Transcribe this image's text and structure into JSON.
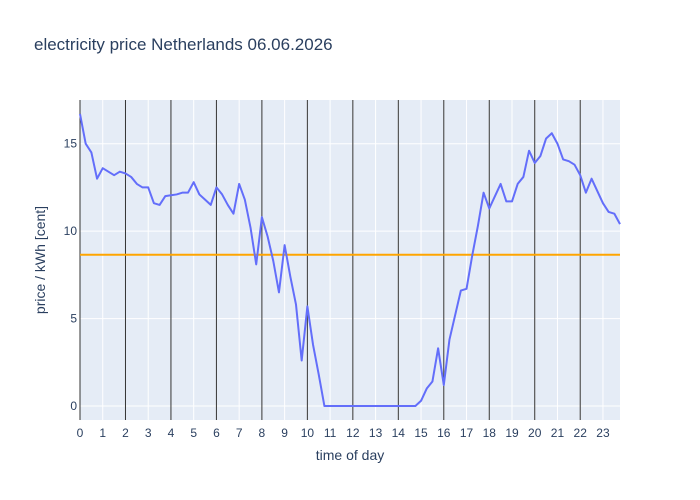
{
  "chart_data": {
    "type": "line",
    "title": "electricity price Netherlands 06.06.2026",
    "xlabel": "time of day",
    "ylabel": "price / kWh [cent]",
    "xlim": [
      0,
      23.75
    ],
    "ylim": [
      -0.8,
      17.5
    ],
    "x_ticks": [
      0,
      1,
      2,
      3,
      4,
      5,
      6,
      7,
      8,
      9,
      10,
      11,
      12,
      13,
      14,
      15,
      16,
      17,
      18,
      19,
      20,
      21,
      22,
      23
    ],
    "y_ticks": [
      0,
      5,
      10,
      15
    ],
    "grid": true,
    "colors": {
      "plot_bg": "#e5ecf6",
      "grid": "#ffffff",
      "price_line": "#636efa",
      "average_line": "#ffa500",
      "vertical_lines": "#333333",
      "text": "#2a3f5f"
    },
    "vertical_lines_x": [
      2,
      4,
      6,
      8,
      10,
      12,
      14,
      16,
      18,
      20,
      22
    ],
    "average_value": 8.65,
    "series": [
      {
        "values": [
          [
            0.0,
            16.7
          ],
          [
            0.25,
            15.0
          ],
          [
            0.5,
            14.5
          ],
          [
            0.75,
            13.0
          ],
          [
            1.0,
            13.6
          ],
          [
            1.25,
            13.4
          ],
          [
            1.5,
            13.2
          ],
          [
            1.75,
            13.4
          ],
          [
            2.0,
            13.3
          ],
          [
            2.25,
            13.1
          ],
          [
            2.5,
            12.7
          ],
          [
            2.75,
            12.5
          ],
          [
            3.0,
            12.5
          ],
          [
            3.25,
            11.6
          ],
          [
            3.5,
            11.5
          ],
          [
            3.75,
            12.0
          ],
          [
            4.0,
            12.05
          ],
          [
            4.25,
            12.1
          ],
          [
            4.5,
            12.2
          ],
          [
            4.75,
            12.2
          ],
          [
            5.0,
            12.8
          ],
          [
            5.25,
            12.1
          ],
          [
            5.5,
            11.8
          ],
          [
            5.75,
            11.5
          ],
          [
            6.0,
            12.5
          ],
          [
            6.25,
            12.1
          ],
          [
            6.5,
            11.5
          ],
          [
            6.75,
            11.0
          ],
          [
            7.0,
            12.7
          ],
          [
            7.25,
            11.8
          ],
          [
            7.5,
            10.2
          ],
          [
            7.75,
            8.1
          ],
          [
            8.0,
            10.8
          ],
          [
            8.25,
            9.7
          ],
          [
            8.5,
            8.3
          ],
          [
            8.75,
            6.5
          ],
          [
            9.0,
            9.2
          ],
          [
            9.25,
            7.4
          ],
          [
            9.5,
            5.8
          ],
          [
            9.75,
            2.6
          ],
          [
            10.0,
            5.7
          ],
          [
            10.25,
            3.5
          ],
          [
            10.5,
            1.8
          ],
          [
            10.75,
            0.0
          ],
          [
            11.0,
            0.0
          ],
          [
            11.5,
            0.0
          ],
          [
            12.0,
            0.0
          ],
          [
            12.5,
            0.0
          ],
          [
            13.0,
            0.0
          ],
          [
            13.5,
            0.0
          ],
          [
            14.0,
            0.0
          ],
          [
            14.5,
            0.0
          ],
          [
            14.75,
            0.0
          ],
          [
            15.0,
            0.3
          ],
          [
            15.25,
            1.0
          ],
          [
            15.5,
            1.4
          ],
          [
            15.75,
            3.3
          ],
          [
            16.0,
            1.2
          ],
          [
            16.25,
            3.8
          ],
          [
            16.5,
            5.2
          ],
          [
            16.75,
            6.6
          ],
          [
            17.0,
            6.7
          ],
          [
            17.25,
            8.6
          ],
          [
            17.5,
            10.3
          ],
          [
            17.75,
            12.2
          ],
          [
            18.0,
            11.3
          ],
          [
            18.25,
            12.0
          ],
          [
            18.5,
            12.7
          ],
          [
            18.75,
            11.7
          ],
          [
            19.0,
            11.7
          ],
          [
            19.25,
            12.7
          ],
          [
            19.5,
            13.1
          ],
          [
            19.75,
            14.6
          ],
          [
            20.0,
            13.9
          ],
          [
            20.25,
            14.3
          ],
          [
            20.5,
            15.3
          ],
          [
            20.75,
            15.6
          ],
          [
            21.0,
            15.0
          ],
          [
            21.25,
            14.1
          ],
          [
            21.5,
            14.0
          ],
          [
            21.75,
            13.8
          ],
          [
            22.0,
            13.2
          ],
          [
            22.25,
            12.2
          ],
          [
            22.5,
            13.0
          ],
          [
            22.75,
            12.3
          ],
          [
            23.0,
            11.6
          ],
          [
            23.25,
            11.1
          ],
          [
            23.5,
            11.0
          ],
          [
            23.75,
            10.4
          ]
        ]
      }
    ]
  }
}
